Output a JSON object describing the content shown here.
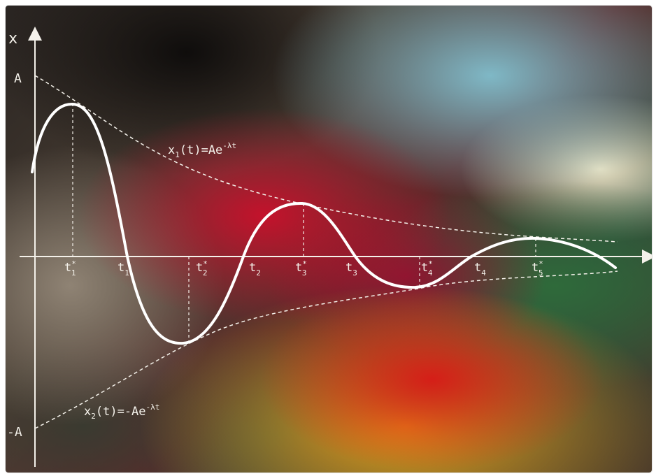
{
  "axis": {
    "y_label": "x",
    "top_label": "A",
    "bottom_label": "-A"
  },
  "envelope_upper": {
    "prefix": "x",
    "sub": "1",
    "mid": "(t)=Ae",
    "sup": "-λt"
  },
  "envelope_lower": {
    "prefix": "x",
    "sub": "2",
    "mid": "(t)=-Ae",
    "sup": "-λt"
  },
  "t_labels": {
    "peak1": {
      "base": "t",
      "star": "*",
      "sub": "1"
    },
    "zero1": {
      "base": "t",
      "sub": "1"
    },
    "peak2": {
      "base": "t",
      "star": "*",
      "sub": "2"
    },
    "zero2": {
      "base": "t",
      "sub": "2"
    },
    "peak3": {
      "base": "t",
      "star": "*",
      "sub": "3"
    },
    "zero3": {
      "base": "t",
      "sub": "3"
    },
    "peak4": {
      "base": "t",
      "star": "*",
      "sub": "4"
    },
    "zero4": {
      "base": "t",
      "sub": "4"
    },
    "peak5": {
      "base": "t",
      "star": "*",
      "sub": "5"
    }
  },
  "colors": {
    "ink": "#f4f1ea",
    "curve": "#ffffff"
  }
}
